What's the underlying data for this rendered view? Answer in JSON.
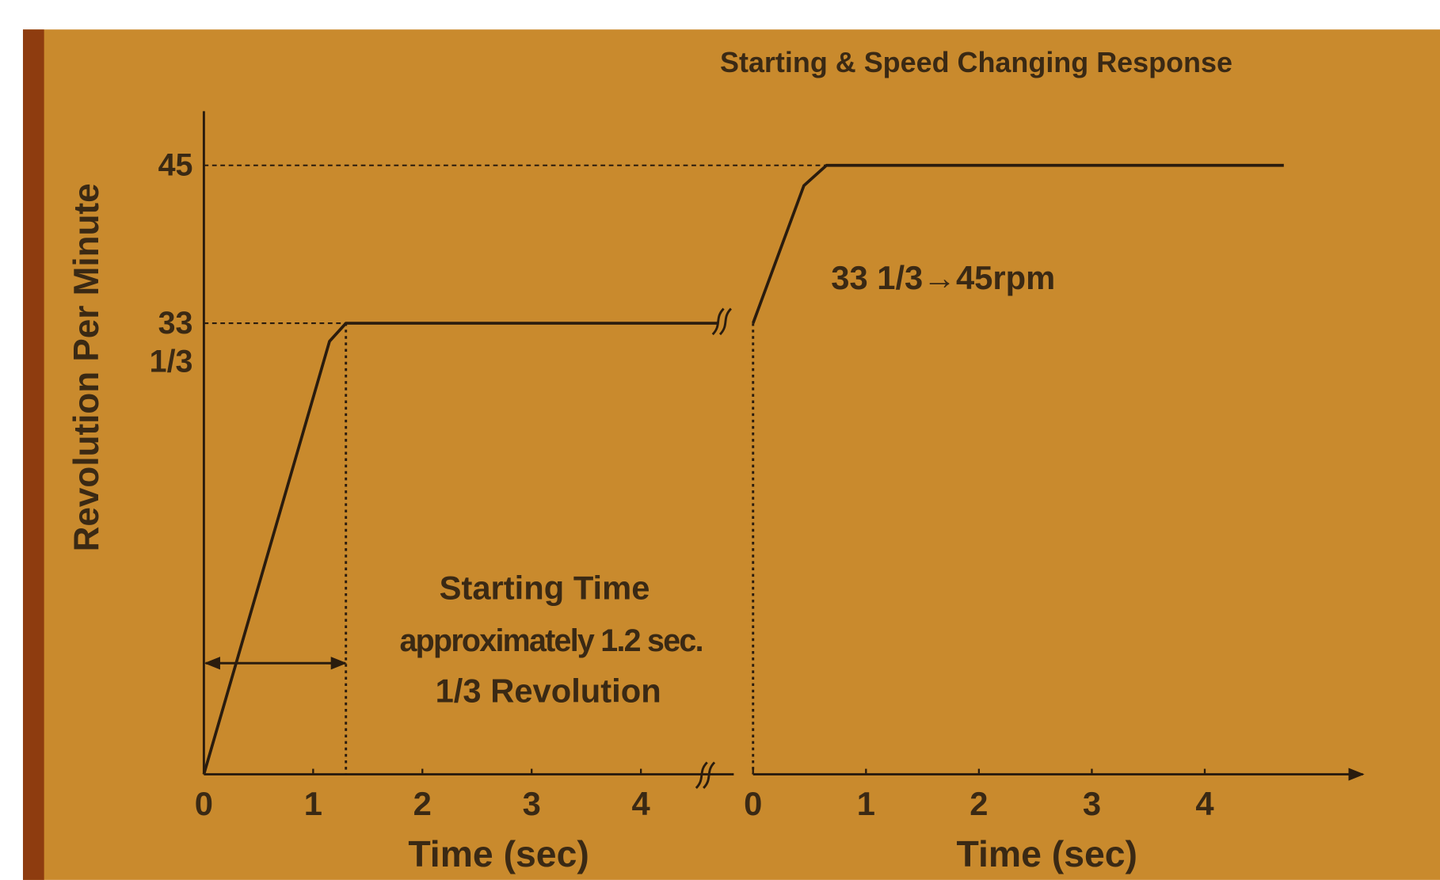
{
  "chart_data": {
    "type": "line",
    "title": "Starting & Speed Changing Response",
    "ylabel": "Revolution Per Minute",
    "ylim": [
      0,
      49
    ],
    "yticks": [
      {
        "value": 33.333,
        "label": "33 1/3"
      },
      45
    ],
    "grid": true,
    "color": "#2a1c0e",
    "panels": [
      {
        "xlabel": "Time (sec)",
        "xlim": [
          0,
          4.85
        ],
        "xticks": [
          0,
          1,
          2,
          3,
          4
        ],
        "x": [
          0,
          1.15,
          1.3,
          4.7
        ],
        "values": [
          0,
          32,
          33.333,
          33.333
        ],
        "vlines": [
          1.3
        ]
      },
      {
        "xlabel": "Time (sec)",
        "xlim": [
          0,
          5.4
        ],
        "xticks": [
          0,
          1,
          2,
          3,
          4
        ],
        "x": [
          0,
          0.45,
          0.65,
          4.7
        ],
        "values": [
          33.333,
          43.5,
          45,
          45
        ],
        "vlines": [
          0
        ]
      }
    ],
    "annotations": [
      "33 1/3→45rpm",
      "Starting Time",
      "approximately 1.2 sec.",
      "1/3 Revolution"
    ]
  }
}
